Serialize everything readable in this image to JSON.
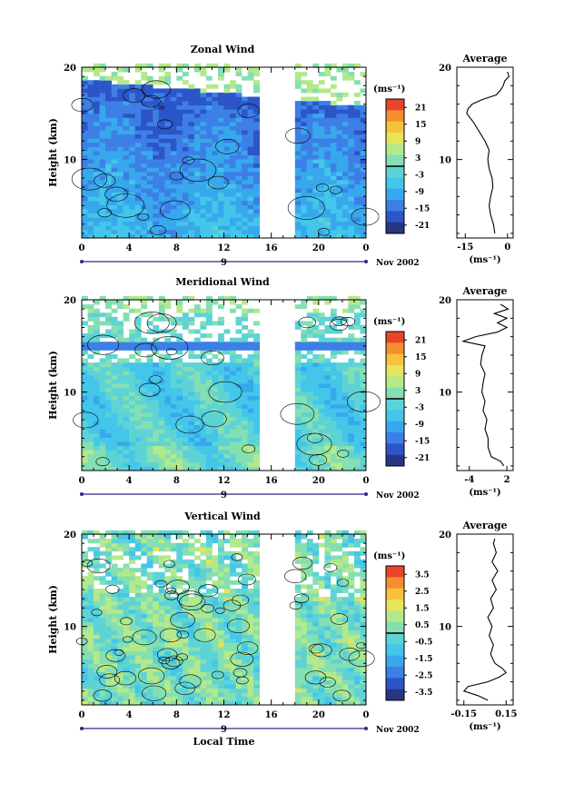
{
  "figure": {
    "xlabel": "Local Time",
    "date_label": "Nov 2002",
    "day_label": "9",
    "unit_label": "(ms⁻¹)",
    "average_title": "Average",
    "ylabel": "Height (km)"
  },
  "colormap": [
    "#283583",
    "#2c55c8",
    "#3d7fe6",
    "#38a8ec",
    "#43c6ea",
    "#5ed3d6",
    "#84dfb2",
    "#b3e98a",
    "#e6e45a",
    "#f7c23c",
    "#f58e2e",
    "#e8452b"
  ],
  "chart_data": [
    {
      "type": "heatmap",
      "title": "Zonal Wind",
      "x_ticks": [
        "0",
        "4",
        "8",
        "12",
        "16",
        "20",
        "0"
      ],
      "y_ticks": [
        "10",
        "20"
      ],
      "xlim": [
        0,
        24
      ],
      "ylim": [
        1.5,
        20
      ],
      "data_gap_hours": [
        [
          15,
          16.2
        ],
        [
          16.6,
          18
        ]
      ],
      "colorbar_ticks": [
        "21",
        "15",
        "9",
        "3",
        "-3",
        "-9",
        "-15",
        "-21"
      ],
      "colorbar_range": [
        -24,
        24
      ],
      "profile": {
        "xlim": [
          -18,
          2
        ],
        "x_ticks": [
          "-15",
          "0"
        ],
        "heights": [
          2.0,
          3.0,
          4.0,
          5.0,
          6.0,
          7.0,
          8.0,
          9.0,
          10.0,
          11.0,
          12.0,
          13.0,
          14.0,
          15.0,
          15.5,
          16.0,
          16.5,
          17.0,
          17.5,
          18.0,
          18.5,
          19.0,
          19.5
        ],
        "values": [
          -4.5,
          -5.0,
          -6.0,
          -6.5,
          -6.0,
          -5.2,
          -5.5,
          -6.5,
          -7.0,
          -6.5,
          -8.0,
          -10.0,
          -12.0,
          -14.5,
          -14.0,
          -12.5,
          -9.0,
          -4.0,
          -2.5,
          -1.5,
          -1.0,
          0.5,
          0.0
        ]
      }
    },
    {
      "type": "heatmap",
      "title": "Meridional Wind",
      "x_ticks": [
        "0",
        "4",
        "8",
        "12",
        "16",
        "20",
        "0"
      ],
      "y_ticks": [
        "10",
        "20"
      ],
      "xlim": [
        0,
        24
      ],
      "ylim": [
        1.5,
        20
      ],
      "data_gap_hours": [
        [
          15,
          16.2
        ],
        [
          16.6,
          18
        ]
      ],
      "colorbar_ticks": [
        "21",
        "15",
        "9",
        "3",
        "-3",
        "-9",
        "-15",
        "-21"
      ],
      "colorbar_range": [
        -24,
        24
      ],
      "profile": {
        "xlim": [
          -6,
          3
        ],
        "x_ticks": [
          "-4",
          "2"
        ],
        "heights": [
          2.0,
          2.5,
          3.0,
          4.0,
          5.0,
          6.0,
          7.0,
          8.0,
          9.0,
          10.0,
          11.0,
          12.0,
          13.0,
          14.0,
          15.0,
          15.5,
          16.0,
          16.5,
          17.0,
          17.5,
          18.0,
          18.5,
          19.0,
          19.5
        ],
        "values": [
          1.5,
          1.0,
          -0.5,
          -1.0,
          -1.0,
          -1.5,
          -1.2,
          -1.8,
          -1.5,
          -2.0,
          -1.8,
          -1.5,
          -2.2,
          -2.0,
          -1.5,
          -5.0,
          -3.0,
          0.5,
          2.0,
          0.5,
          2.0,
          0.0,
          2.2,
          1.0
        ]
      }
    },
    {
      "type": "heatmap",
      "title": "Vertical Wind",
      "x_ticks": [
        "0",
        "4",
        "8",
        "12",
        "16",
        "20",
        "0"
      ],
      "y_ticks": [
        "10",
        "20"
      ],
      "xlim": [
        0,
        24
      ],
      "ylim": [
        1.5,
        20
      ],
      "data_gap_hours": [
        [
          15,
          16.2
        ],
        [
          16.6,
          18
        ]
      ],
      "colorbar_ticks": [
        "3.5",
        "2.5",
        "1.5",
        "0.5",
        "-0.5",
        "-1.5",
        "-2.5",
        "-3.5"
      ],
      "colorbar_range": [
        -4,
        4
      ],
      "profile": {
        "xlim": [
          -0.2,
          0.2
        ],
        "x_ticks": [
          "-0.15",
          "0.15"
        ],
        "heights": [
          2.0,
          2.5,
          3.0,
          3.5,
          4.0,
          4.5,
          5.0,
          5.5,
          6.0,
          7.0,
          8.0,
          9.0,
          10.0,
          11.0,
          12.0,
          13.0,
          14.0,
          15.0,
          16.0,
          17.0,
          18.0,
          19.0,
          19.5
        ],
        "values": [
          0.02,
          -0.05,
          -0.15,
          -0.12,
          0.02,
          0.1,
          0.15,
          0.12,
          0.07,
          0.04,
          0.06,
          0.03,
          0.05,
          0.02,
          0.06,
          0.04,
          0.08,
          0.05,
          0.09,
          0.05,
          0.08,
          0.06,
          0.07
        ]
      }
    }
  ]
}
